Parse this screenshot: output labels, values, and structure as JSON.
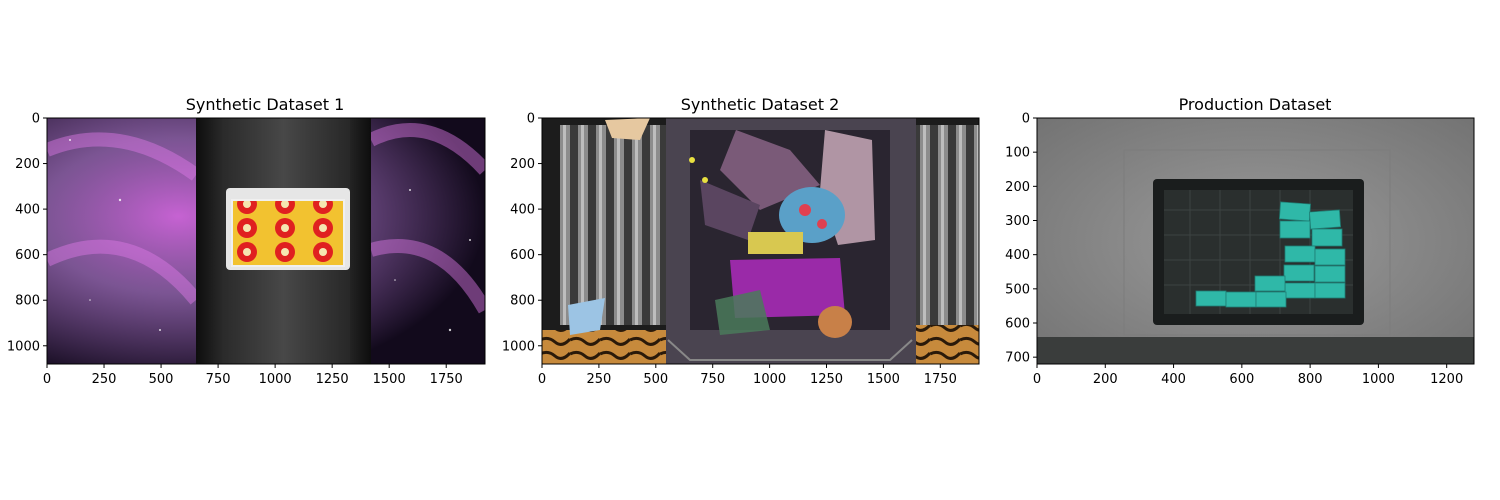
{
  "chart_data": [
    {
      "type": "image",
      "title": "Synthetic Dataset 1",
      "xlim": [
        0,
        1920
      ],
      "ylim": [
        1080,
        0
      ],
      "xticks": [
        0,
        250,
        500,
        750,
        1000,
        1250,
        1500,
        1750
      ],
      "yticks": [
        0,
        200,
        400,
        600,
        800,
        1000
      ],
      "scene": "space background, tote with red product packs on grey surface"
    },
    {
      "type": "image",
      "title": "Synthetic Dataset 2",
      "xlim": [
        0,
        1920
      ],
      "ylim": [
        1080,
        0
      ],
      "xticks": [
        0,
        250,
        500,
        750,
        1000,
        1250,
        1500,
        1750
      ],
      "yticks": [
        0,
        200,
        400,
        600,
        800,
        1000
      ],
      "scene": "cluttered tote with mixed bags and objects between roller conveyors"
    },
    {
      "type": "image",
      "title": "Production Dataset",
      "xlim": [
        0,
        1280
      ],
      "ylim": [
        720,
        0
      ],
      "xticks": [
        0,
        200,
        400,
        600,
        800,
        1000,
        1200
      ],
      "yticks": [
        0,
        100,
        200,
        300,
        400,
        500,
        600,
        700
      ],
      "scene": "black crate with teal boxes on grey table"
    }
  ],
  "colors": {
    "space_dark": "#120a1c",
    "space_pink": "#c050c0",
    "tote_red": "#e02020",
    "conveyor_grey": "#6a6a6a",
    "bag_purple": "#9a2aa8",
    "table_grey": "#8a8a8a",
    "crate_black": "#1a1d1d",
    "box_teal": "#2fb8a8"
  }
}
